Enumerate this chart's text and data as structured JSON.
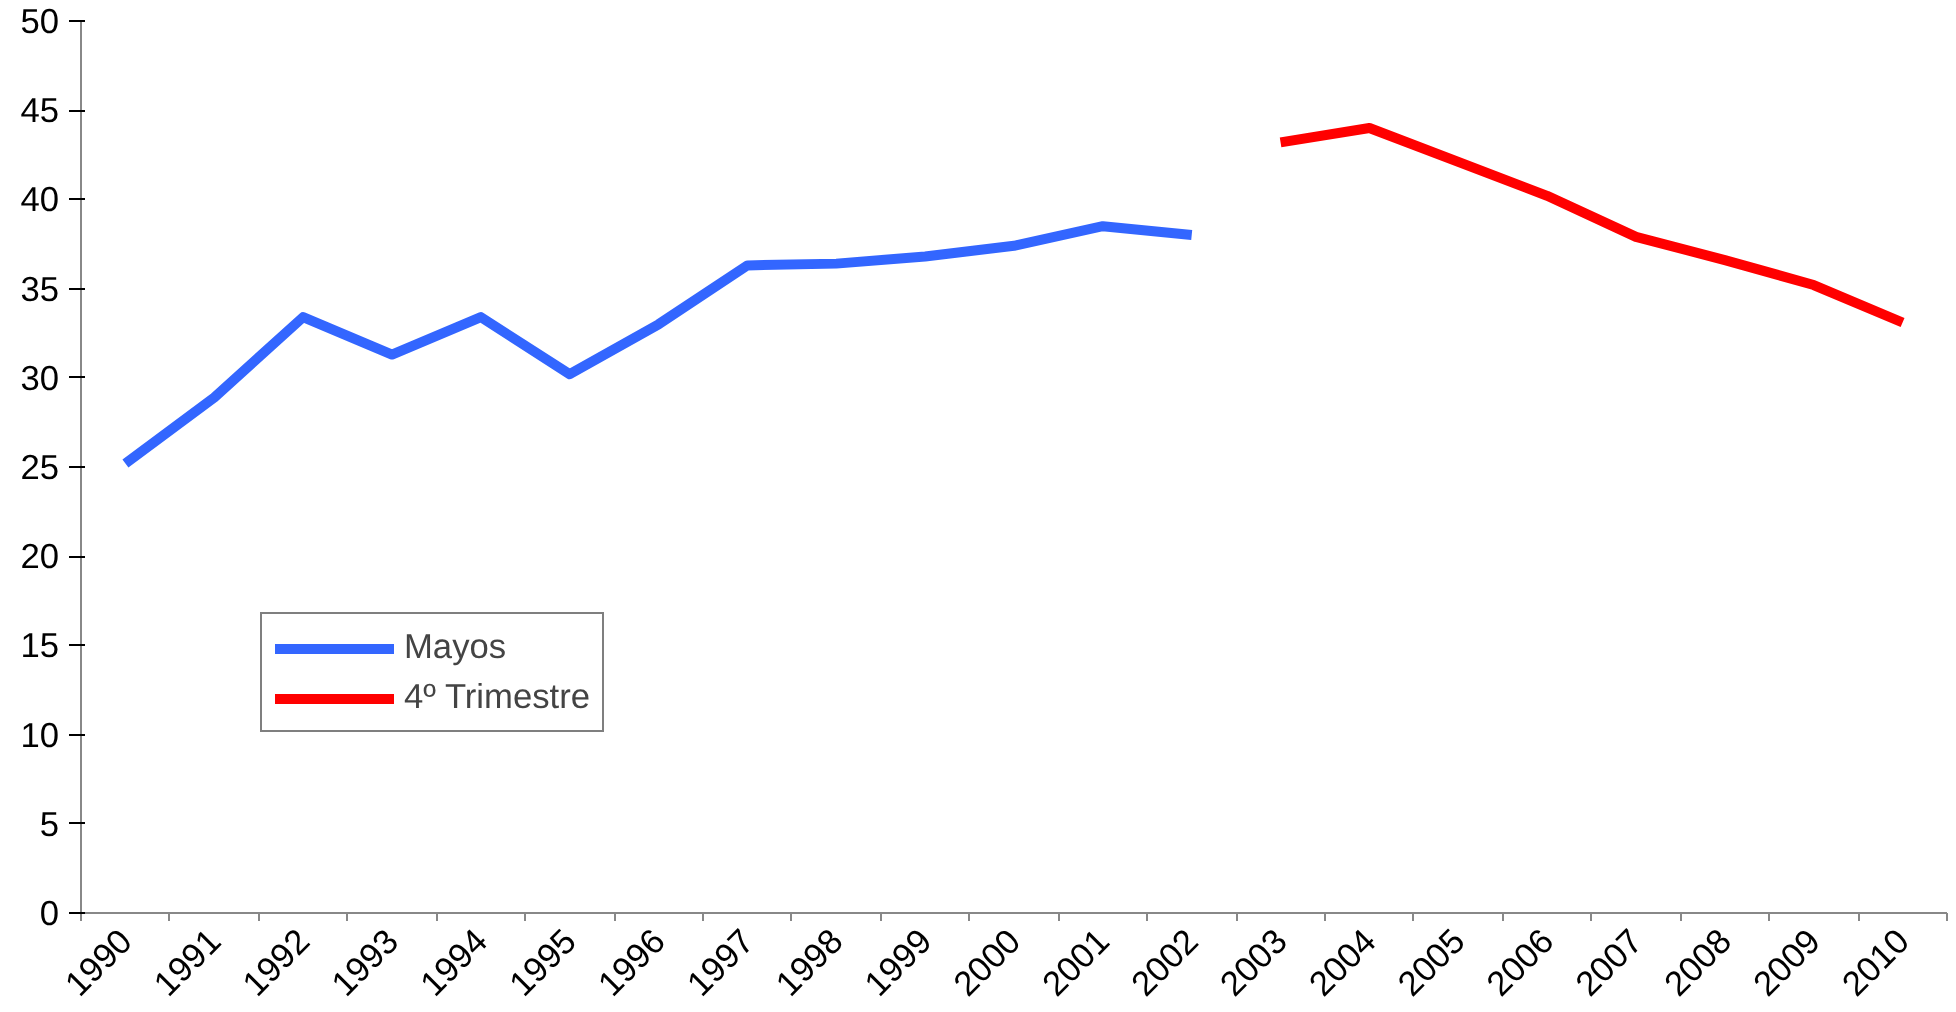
{
  "chart_data": {
    "type": "line",
    "categories": [
      "1990",
      "1991",
      "1992",
      "1993",
      "1994",
      "1995",
      "1996",
      "1997",
      "1998",
      "1999",
      "2000",
      "2001",
      "2002",
      "2003",
      "2004",
      "2005",
      "2006",
      "2007",
      "2008",
      "2009",
      "2010"
    ],
    "series": [
      {
        "name": "Mayos",
        "color": "#3366ff",
        "values": [
          25.2,
          28.9,
          33.4,
          31.3,
          33.4,
          30.2,
          33.0,
          36.3,
          36.4,
          36.8,
          37.4,
          38.5,
          38.0,
          null,
          null,
          null,
          null,
          null,
          null,
          null,
          null
        ]
      },
      {
        "name": "4º Trimestre",
        "color": "#ff0000",
        "values": [
          null,
          null,
          null,
          null,
          null,
          null,
          null,
          null,
          null,
          null,
          null,
          null,
          null,
          43.2,
          44.0,
          42.1,
          40.2,
          37.9,
          36.6,
          35.2,
          33.1
        ]
      }
    ],
    "ylim": [
      0,
      50
    ],
    "yticks": [
      0,
      5,
      10,
      15,
      20,
      25,
      30,
      35,
      40,
      45,
      50
    ],
    "grid": false,
    "legend": "bottom left",
    "marker": "none",
    "line_style": "solid"
  }
}
